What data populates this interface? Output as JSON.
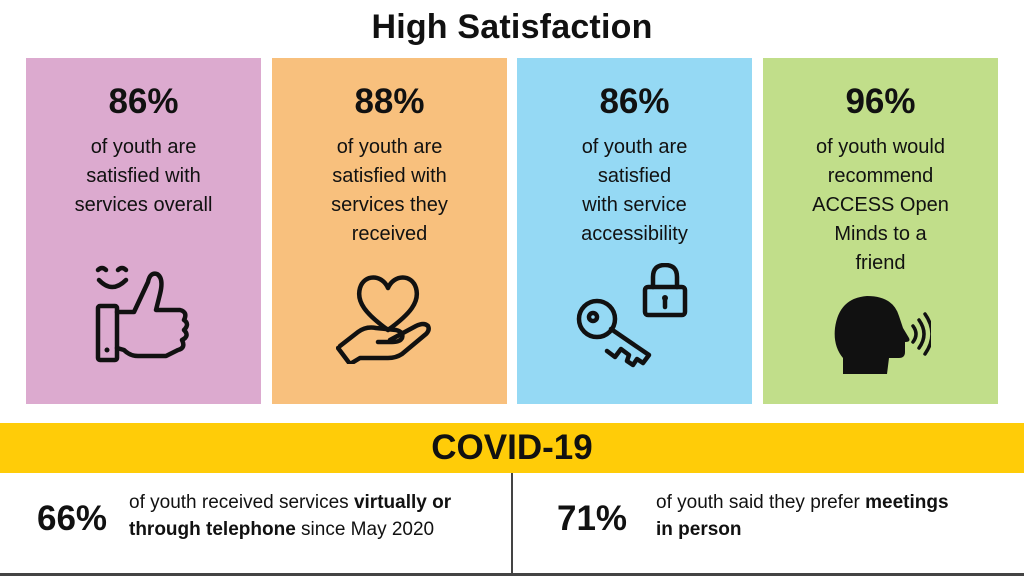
{
  "title": "High Satisfaction",
  "colors": {
    "card1": "#dcaacf",
    "card2": "#f8c07d",
    "card3": "#95d9f4",
    "card4": "#c1de8a",
    "banner": "#ffcc08"
  },
  "cards": [
    {
      "percent": "86%",
      "lines": [
        "of youth are",
        "satisfied with",
        "services overall"
      ],
      "icon": "thumbs-up-smile-icon"
    },
    {
      "percent": "88%",
      "lines": [
        "of youth are",
        "satisfied with",
        "services they",
        "received"
      ],
      "icon": "heart-in-hand-icon"
    },
    {
      "percent": "86%",
      "lines": [
        "of youth are",
        "satisfied",
        "with service",
        "accessibility"
      ],
      "icon": "key-and-lock-icon"
    },
    {
      "percent": "96%",
      "lines": [
        "of youth would",
        "recommend",
        "ACCESS Open",
        "Minds to a",
        "friend"
      ],
      "icon": "speaking-head-icon"
    }
  ],
  "banner": "COVID-19",
  "stats": [
    {
      "percent": "66%",
      "line1_pre": "of youth received services ",
      "line1_bold": "virtually or",
      "line2_bold": "through telephone",
      "line2_post": " since May 2020"
    },
    {
      "percent": "71%",
      "line1_pre": "of youth said they prefer ",
      "line1_bold": "meetings",
      "line2_bold": "in person",
      "line2_post": ""
    }
  ]
}
